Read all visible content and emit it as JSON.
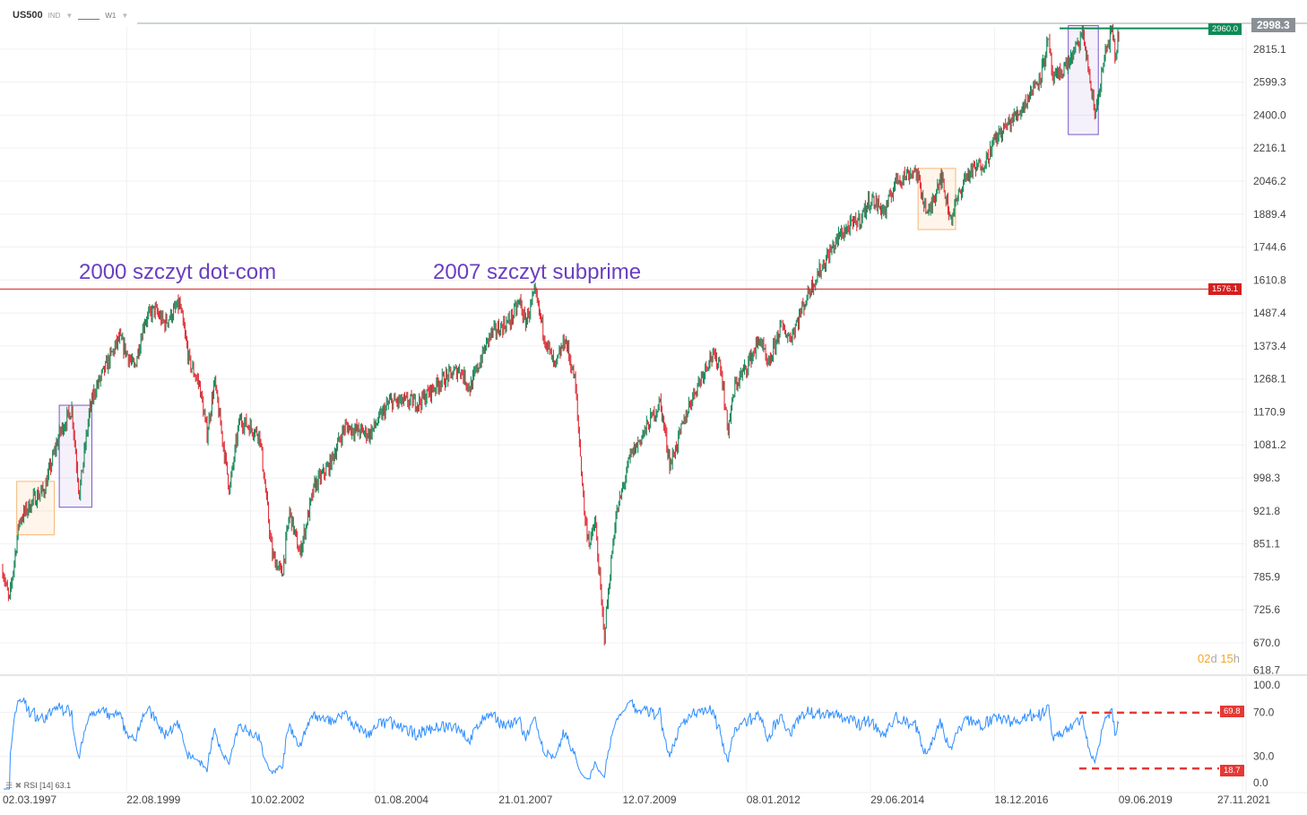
{
  "header": {
    "symbol": "US500",
    "type": "IND",
    "interval": "W1"
  },
  "price_tags": {
    "last": "2998.3",
    "green_level": "2960.0",
    "red_level": "1576.1",
    "rsi_upper": "69.8",
    "rsi_lower": "18.7"
  },
  "annotations": [
    "2000 szczyt dot-com",
    "2007 szczyt subprime"
  ],
  "timer": {
    "days": "02",
    "d": "d",
    "hours": "15",
    "h": "h"
  },
  "rsi": {
    "label": "RSI [14] 63.1",
    "axis": [
      "100.0",
      "70.0",
      "30.0",
      "0.0"
    ]
  },
  "colors": {
    "up": "#1a8a5a",
    "down": "#e0303a",
    "annot": "#6a3fc0",
    "rsi": "#2f8fff"
  },
  "chart_data": {
    "type": "candlestick",
    "symbol": "US500",
    "interval": "W1",
    "scale": "log",
    "y_ticks": [
      "2815.1",
      "2599.3",
      "2400.0",
      "2216.1",
      "2046.2",
      "1889.4",
      "1744.6",
      "1610.8",
      "1487.4",
      "1373.4",
      "1268.1",
      "1170.9",
      "1081.2",
      "998.3",
      "921.8",
      "851.1",
      "785.9",
      "725.6",
      "670.0",
      "618.7"
    ],
    "x_ticks": [
      "02.03.1997",
      "22.08.1999",
      "10.02.2002",
      "01.08.2004",
      "21.01.2007",
      "12.07.2009",
      "08.01.2012",
      "29.06.2014",
      "18.12.2016",
      "09.06.2019",
      "27.11.2021"
    ],
    "levels": [
      {
        "name": "resistance",
        "value": 1576.1
      },
      {
        "name": "support",
        "value": 2960.0
      },
      {
        "name": "last",
        "value": 2998.3
      }
    ],
    "keypoints": [
      [
        1997.17,
        800
      ],
      [
        1997.3,
        740
      ],
      [
        1997.5,
        900
      ],
      [
        1997.8,
        950
      ],
      [
        1998.0,
        970
      ],
      [
        1998.3,
        1110
      ],
      [
        1998.55,
        1180
      ],
      [
        1998.7,
        960
      ],
      [
        1998.9,
        1170
      ],
      [
        1999.0,
        1230
      ],
      [
        1999.3,
        1330
      ],
      [
        1999.5,
        1400
      ],
      [
        1999.8,
        1300
      ],
      [
        2000.0,
        1460
      ],
      [
        2000.2,
        1500
      ],
      [
        2000.4,
        1450
      ],
      [
        2000.7,
        1520
      ],
      [
        2000.9,
        1320
      ],
      [
        2001.1,
        1250
      ],
      [
        2001.25,
        1110
      ],
      [
        2001.4,
        1260
      ],
      [
        2001.7,
        970
      ],
      [
        2001.9,
        1150
      ],
      [
        2002.0,
        1140
      ],
      [
        2002.3,
        1110
      ],
      [
        2002.55,
        830
      ],
      [
        2002.75,
        790
      ],
      [
        2002.9,
        920
      ],
      [
        2003.1,
        830
      ],
      [
        2003.4,
        980
      ],
      [
        2003.7,
        1030
      ],
      [
        2004.0,
        1130
      ],
      [
        2004.5,
        1110
      ],
      [
        2004.9,
        1200
      ],
      [
        2005.5,
        1200
      ],
      [
        2005.9,
        1260
      ],
      [
        2006.3,
        1300
      ],
      [
        2006.5,
        1240
      ],
      [
        2006.9,
        1410
      ],
      [
        2007.3,
        1460
      ],
      [
        2007.5,
        1530
      ],
      [
        2007.6,
        1450
      ],
      [
        2007.8,
        1560
      ],
      [
        2008.0,
        1400
      ],
      [
        2008.2,
        1300
      ],
      [
        2008.4,
        1400
      ],
      [
        2008.6,
        1260
      ],
      [
        2008.8,
        900
      ],
      [
        2008.9,
        850
      ],
      [
        2009.0,
        900
      ],
      [
        2009.18,
        680
      ],
      [
        2009.4,
        900
      ],
      [
        2009.7,
        1050
      ],
      [
        2010.0,
        1120
      ],
      [
        2010.3,
        1200
      ],
      [
        2010.5,
        1030
      ],
      [
        2010.9,
        1200
      ],
      [
        2011.3,
        1340
      ],
      [
        2011.5,
        1320
      ],
      [
        2011.65,
        1120
      ],
      [
        2011.8,
        1250
      ],
      [
        2012.0,
        1300
      ],
      [
        2012.3,
        1400
      ],
      [
        2012.45,
        1300
      ],
      [
        2012.7,
        1440
      ],
      [
        2012.9,
        1400
      ],
      [
        2013.3,
        1580
      ],
      [
        2013.6,
        1690
      ],
      [
        2013.9,
        1800
      ],
      [
        2014.3,
        1870
      ],
      [
        2014.5,
        1960
      ],
      [
        2014.8,
        1900
      ],
      [
        2015.0,
        2050
      ],
      [
        2015.4,
        2100
      ],
      [
        2015.65,
        1880
      ],
      [
        2015.9,
        2080
      ],
      [
        2016.1,
        1870
      ],
      [
        2016.4,
        2070
      ],
      [
        2016.8,
        2150
      ],
      [
        2017.0,
        2270
      ],
      [
        2017.5,
        2430
      ],
      [
        2017.9,
        2650
      ],
      [
        2018.05,
        2870
      ],
      [
        2018.15,
        2600
      ],
      [
        2018.5,
        2750
      ],
      [
        2018.75,
        2920
      ],
      [
        2018.98,
        2400
      ],
      [
        2019.2,
        2800
      ],
      [
        2019.32,
        2940
      ],
      [
        2019.4,
        2750
      ],
      [
        2019.47,
        2998.3
      ]
    ],
    "highlight_boxes": [
      {
        "color": "orange",
        "from": 1997.45,
        "to": 1998.2,
        "low": 870,
        "high": 990
      },
      {
        "color": "purple",
        "from": 1998.3,
        "to": 1998.95,
        "low": 930,
        "high": 1190
      },
      {
        "color": "orange",
        "from": 2015.45,
        "to": 2016.2,
        "low": 1820,
        "high": 2110
      },
      {
        "color": "purple",
        "from": 2018.45,
        "to": 2019.05,
        "low": 2290,
        "high": 2980
      }
    ],
    "rsi_period": 14,
    "rsi_last": 63.1,
    "rsi_levels": [
      69.8,
      18.7
    ]
  }
}
